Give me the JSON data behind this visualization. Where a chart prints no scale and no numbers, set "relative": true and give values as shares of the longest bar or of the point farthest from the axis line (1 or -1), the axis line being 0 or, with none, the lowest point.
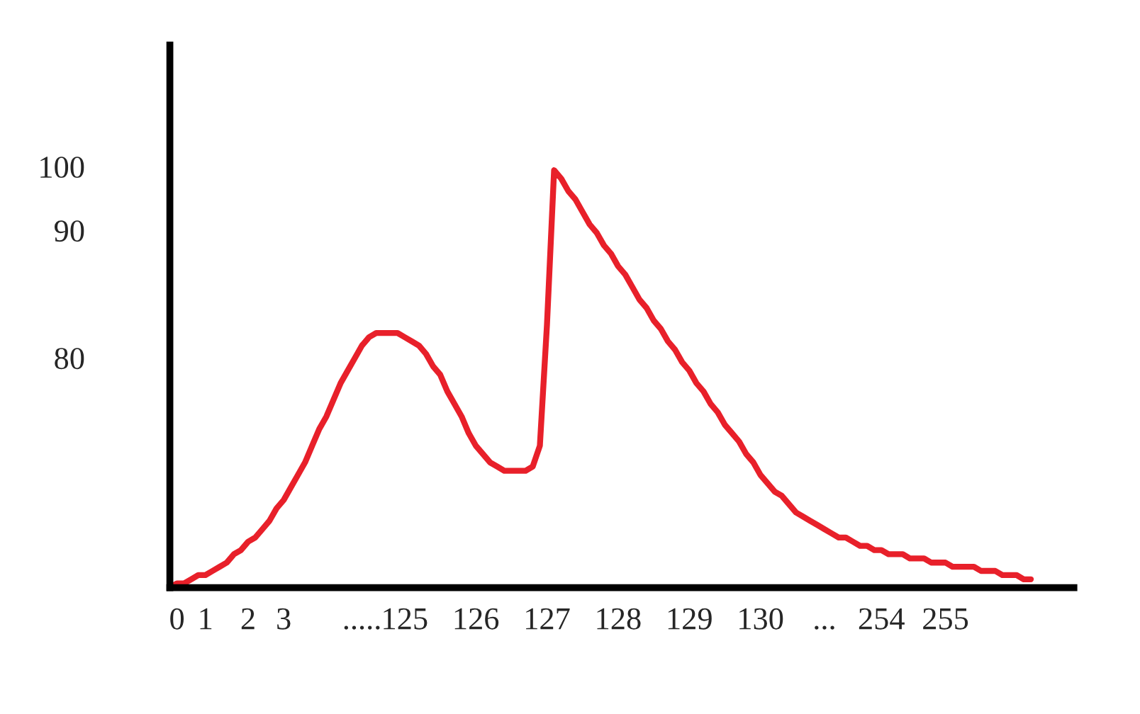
{
  "chart_data": {
    "type": "line",
    "relative": true,
    "grid": false,
    "marker": "none",
    "line_style": "solid",
    "annotations": [
      "100",
      "90",
      "80"
    ],
    "categories": [
      null,
      "0",
      null,
      null,
      null,
      "1",
      null,
      null,
      null,
      null,
      null,
      "2",
      null,
      null,
      null,
      null,
      "3",
      null,
      null,
      null,
      null,
      null,
      null,
      null,
      null,
      null,
      null,
      ".....",
      null,
      null,
      null,
      null,
      null,
      "125",
      null,
      null,
      null,
      null,
      null,
      null,
      null,
      null,
      null,
      "126",
      null,
      null,
      null,
      null,
      null,
      null,
      null,
      null,
      null,
      "127",
      null,
      null,
      null,
      null,
      null,
      null,
      null,
      null,
      null,
      "128",
      null,
      null,
      null,
      null,
      null,
      null,
      null,
      null,
      null,
      "129",
      null,
      null,
      null,
      null,
      null,
      null,
      null,
      null,
      null,
      "130",
      null,
      null,
      null,
      null,
      null,
      null,
      null,
      null,
      "...",
      null,
      null,
      null,
      null,
      null,
      null,
      null,
      "254",
      null,
      null,
      null,
      null,
      null,
      null,
      null,
      null,
      "255",
      null,
      null,
      null,
      null,
      null,
      null,
      null,
      null,
      null,
      null,
      null,
      null
    ],
    "series": [
      {
        "color": "#e8202a",
        "values": [
          0,
          0.01,
          0.01,
          0.02,
          0.03,
          0.03,
          0.04,
          0.05,
          0.06,
          0.08,
          0.09,
          0.11,
          0.12,
          0.14,
          0.16,
          0.19,
          0.21,
          0.24,
          0.27,
          0.3,
          0.34,
          0.38,
          0.41,
          0.45,
          0.49,
          0.52,
          0.55,
          0.58,
          0.6,
          0.61,
          0.61,
          0.61,
          0.61,
          0.6,
          0.59,
          0.58,
          0.56,
          0.53,
          0.51,
          0.47,
          0.44,
          0.41,
          0.37,
          0.34,
          0.32,
          0.3,
          0.29,
          0.28,
          0.28,
          0.28,
          0.28,
          0.29,
          0.34,
          0.63,
          1,
          0.98,
          0.95,
          0.93,
          0.9,
          0.87,
          0.85,
          0.82,
          0.8,
          0.77,
          0.75,
          0.72,
          0.69,
          0.67,
          0.64,
          0.62,
          0.59,
          0.57,
          0.54,
          0.52,
          0.49,
          0.47,
          0.44,
          0.42,
          0.39,
          0.37,
          0.35,
          0.32,
          0.3,
          0.27,
          0.25,
          0.23,
          0.22,
          0.2,
          0.18,
          0.17,
          0.16,
          0.15,
          0.14,
          0.13,
          0.12,
          0.12,
          0.11,
          0.1,
          0.1,
          0.09,
          0.09,
          0.08,
          0.08,
          0.08,
          0.07,
          0.07,
          0.07,
          0.06,
          0.06,
          0.06,
          0.05,
          0.05,
          0.05,
          0.05,
          0.04,
          0.04,
          0.04,
          0.03,
          0.03,
          0.03,
          0.02,
          0.02
        ]
      }
    ]
  }
}
